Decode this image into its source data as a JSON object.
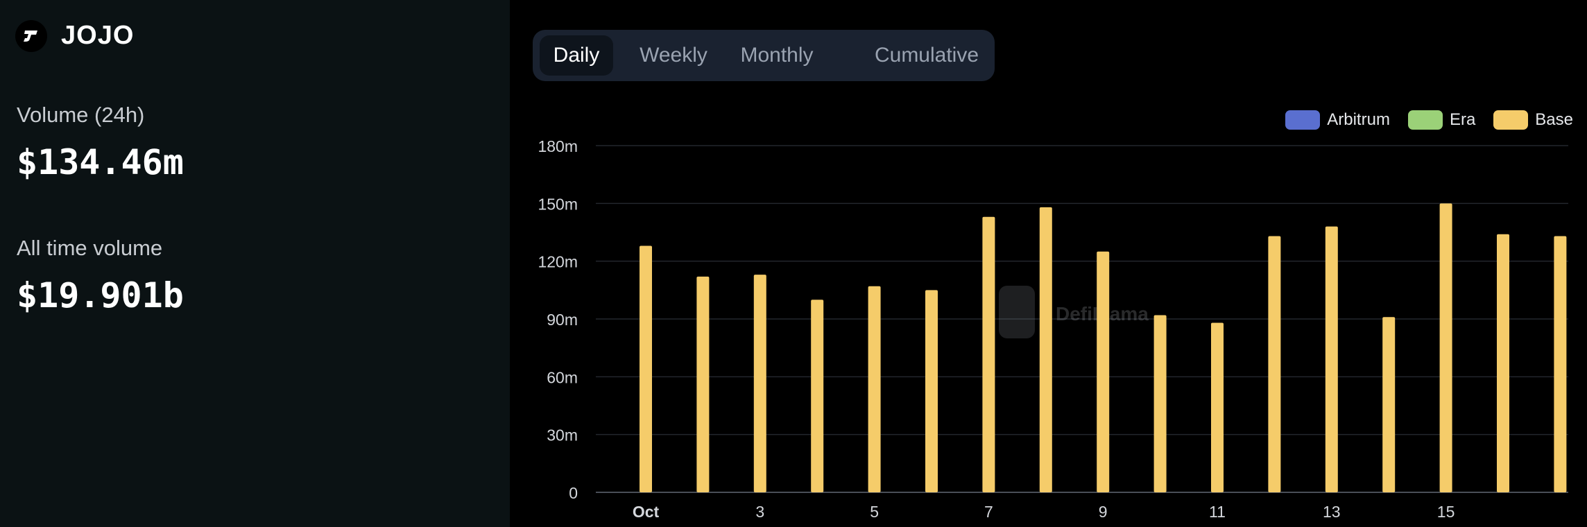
{
  "sidebar": {
    "app_name": "JOJO",
    "stats": [
      {
        "label": "Volume (24h)",
        "value": "$134.46m"
      },
      {
        "label": "All time volume",
        "value": "$19.901b"
      }
    ]
  },
  "tabs": [
    {
      "label": "Daily",
      "active": true
    },
    {
      "label": "Weekly",
      "active": false
    },
    {
      "label": "Monthly",
      "active": false
    },
    {
      "label": "Cumulative",
      "active": false
    }
  ],
  "watermark": "DefiLlama",
  "colors": {
    "arbitrum": "#5a6fd0",
    "era": "#9bd178",
    "base": "#f5cc6a"
  },
  "chart_data": {
    "type": "bar",
    "title": "",
    "xlabel": "",
    "ylabel": "",
    "ylim": [
      0,
      180
    ],
    "yunit": "m",
    "yticks": [
      "0",
      "30m",
      "60m",
      "90m",
      "120m",
      "150m",
      "180m"
    ],
    "xtick_labels": [
      {
        "label": "Oct",
        "index": 0
      },
      {
        "label": "3",
        "index": 2
      },
      {
        "label": "5",
        "index": 4
      },
      {
        "label": "7",
        "index": 6
      },
      {
        "label": "9",
        "index": 8
      },
      {
        "label": "11",
        "index": 10
      },
      {
        "label": "13",
        "index": 12
      },
      {
        "label": "15",
        "index": 14
      }
    ],
    "categories": [
      "Oct 1",
      "Oct 2",
      "Oct 3",
      "Oct 4",
      "Oct 5",
      "Oct 6",
      "Oct 7",
      "Oct 8",
      "Oct 9",
      "Oct 10",
      "Oct 11",
      "Oct 12",
      "Oct 13",
      "Oct 14",
      "Oct 15",
      "Oct 16",
      "Oct 17"
    ],
    "legend_position": "top-right",
    "grid": true,
    "series": [
      {
        "name": "Arbitrum",
        "color": "#5a6fd0",
        "values": [
          0,
          0,
          0,
          0,
          0,
          0,
          0,
          0,
          0,
          0,
          0,
          0,
          0,
          0,
          0,
          0,
          0
        ]
      },
      {
        "name": "Era",
        "color": "#9bd178",
        "values": [
          0,
          0,
          0,
          0,
          0,
          0,
          0,
          0,
          0,
          0,
          0,
          0,
          0,
          0,
          0,
          0,
          0
        ]
      },
      {
        "name": "Base",
        "color": "#f5cc6a",
        "values": [
          128,
          112,
          113,
          100,
          107,
          105,
          143,
          148,
          125,
          92,
          88,
          133,
          138,
          91,
          150,
          134,
          133
        ]
      }
    ]
  }
}
